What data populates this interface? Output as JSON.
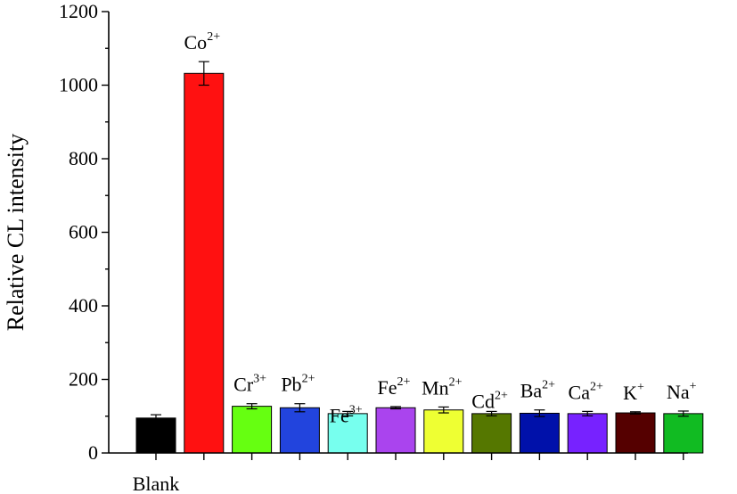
{
  "chart_data": {
    "type": "bar",
    "title": "",
    "xlabel": "",
    "ylabel": "Relative CL intensity",
    "ylim": [
      0,
      1200
    ],
    "yticks": [
      0,
      200,
      400,
      600,
      800,
      1000,
      1200
    ],
    "grid": false,
    "legend": "none",
    "categories": [
      {
        "base": "Blank",
        "sup": "",
        "label_position": "below-axis"
      },
      {
        "base": "Co",
        "sup": "2+",
        "label_position": "above-bar"
      },
      {
        "base": "Cr",
        "sup": "3+",
        "label_position": "above-bar"
      },
      {
        "base": "Pb",
        "sup": "2+",
        "label_position": "above-bar"
      },
      {
        "base": "Fe",
        "sup": "3+",
        "label_position": "above-bar"
      },
      {
        "base": "Fe",
        "sup": "2+",
        "label_position": "above-bar"
      },
      {
        "base": "Mn",
        "sup": "2+",
        "label_position": "above-bar"
      },
      {
        "base": "Cd",
        "sup": "2+",
        "label_position": "above-bar"
      },
      {
        "base": "Ba",
        "sup": "2+",
        "label_position": "above-bar"
      },
      {
        "base": "Ca",
        "sup": "2+",
        "label_position": "above-bar"
      },
      {
        "base": "K",
        "sup": "+",
        "label_position": "above-bar"
      },
      {
        "base": "Na",
        "sup": "+",
        "label_position": "above-bar"
      }
    ],
    "values": [
      95,
      1032,
      127,
      123,
      107,
      123,
      117,
      107,
      108,
      107,
      109,
      107
    ],
    "errors": [
      9,
      32,
      7,
      11,
      6,
      3,
      8,
      6,
      9,
      6,
      3,
      7
    ],
    "colors": [
      "#000000",
      "#ff1111",
      "#66ff11",
      "#2244dd",
      "#77ffee",
      "#aa44ee",
      "#eeff33",
      "#557700",
      "#0011aa",
      "#7722ff",
      "#550000",
      "#11bb22"
    ]
  }
}
